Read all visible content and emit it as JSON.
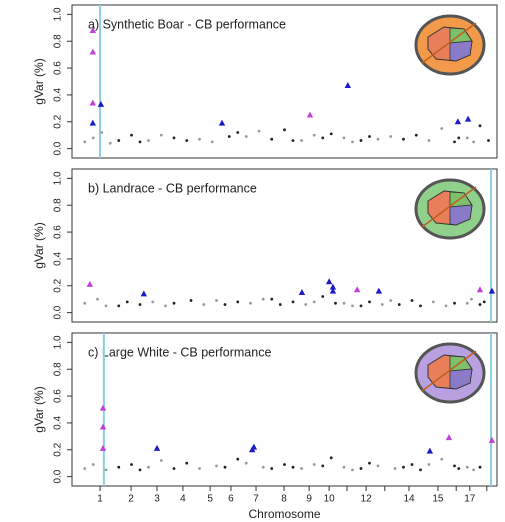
{
  "chart_data": [
    {
      "type": "scatter",
      "title": "a) Synthetic Boar - CB performance",
      "ylabel": "gVar (%)",
      "xlim": [
        0,
        100
      ],
      "ylim": [
        -0.07,
        1.07
      ],
      "yticks": [
        {
          "value": 0,
          "label": "0.0"
        },
        {
          "value": 0.2,
          "label": "0.2"
        },
        {
          "value": 0.4,
          "label": "0.4"
        },
        {
          "value": 0.6,
          "label": "0.6"
        },
        {
          "value": 0.8,
          "label": "0.8"
        },
        {
          "value": 1,
          "label": "1.0"
        }
      ],
      "vlines": [
        6.6
      ],
      "vline_color": "#8ccfe0",
      "icon_color": "#f39a4a",
      "series": [
        {
          "color": "#9a9a9a",
          "size": 1.4,
          "x": [
            3,
            5,
            7,
            9,
            18,
            21,
            30,
            33,
            41,
            44,
            54,
            57,
            64,
            66,
            72,
            75,
            84,
            87,
            93,
            94.5
          ],
          "values": [
            0.05,
            0.08,
            0.12,
            0.04,
            0.06,
            0.1,
            0.07,
            0.05,
            0.09,
            0.13,
            0.06,
            0.1,
            0.08,
            0.05,
            0.07,
            0.09,
            0.06,
            0.15,
            0.08,
            0.05
          ]
        },
        {
          "color": "#222222",
          "size": 1.4,
          "x": [
            11,
            14,
            16,
            24,
            27,
            37,
            39,
            47,
            50,
            52,
            59,
            61,
            68,
            70,
            78,
            81,
            90,
            91,
            96,
            98
          ],
          "values": [
            0.06,
            0.1,
            0.05,
            0.08,
            0.06,
            0.09,
            0.12,
            0.07,
            0.14,
            0.06,
            0.08,
            0.11,
            0.06,
            0.09,
            0.07,
            0.1,
            0.05,
            0.08,
            0.17,
            0.06
          ]
        },
        {
          "color": "#c23fd8",
          "marker": "triangle",
          "x": [
            4.9,
            4.9,
            4.9,
            56.0
          ],
          "values": [
            0.88,
            0.72,
            0.34,
            0.25
          ]
        },
        {
          "color": "#1c1cc8",
          "marker": "triangle",
          "x": [
            4.9,
            6.8,
            35.3,
            64.9,
            90.8,
            93.2
          ],
          "values": [
            0.19,
            0.33,
            0.19,
            0.47,
            0.2,
            0.22
          ]
        }
      ]
    },
    {
      "type": "scatter",
      "title": "b) Landrace - CB performance",
      "ylabel": "gVar (%)",
      "xlim": [
        0,
        100
      ],
      "ylim": [
        -0.07,
        1.07
      ],
      "yticks": [
        {
          "value": 0,
          "label": "0.0"
        },
        {
          "value": 0.2,
          "label": "0.2"
        },
        {
          "value": 0.4,
          "label": "0.4"
        },
        {
          "value": 0.6,
          "label": "0.6"
        },
        {
          "value": 0.8,
          "label": "0.8"
        },
        {
          "value": 1,
          "label": "1.0"
        }
      ],
      "vlines": [
        98.6
      ],
      "vline_color": "#8ccfe0",
      "icon_color": "#8fd18a",
      "series": [
        {
          "color": "#9a9a9a",
          "size": 1.4,
          "x": [
            3,
            6,
            8,
            19,
            22,
            31,
            34,
            42,
            45,
            55,
            57,
            64,
            66,
            73,
            75,
            85,
            88,
            93,
            94
          ],
          "values": [
            0.07,
            0.1,
            0.05,
            0.08,
            0.05,
            0.06,
            0.09,
            0.07,
            0.1,
            0.06,
            0.08,
            0.07,
            0.05,
            0.06,
            0.09,
            0.08,
            0.05,
            0.07,
            0.1
          ]
        },
        {
          "color": "#222222",
          "size": 1.4,
          "x": [
            11,
            13,
            16,
            24,
            28,
            36,
            39,
            47,
            49,
            52,
            59,
            62,
            68,
            70,
            77,
            80,
            82,
            90,
            96,
            97
          ],
          "values": [
            0.05,
            0.08,
            0.06,
            0.07,
            0.09,
            0.06,
            0.08,
            0.1,
            0.06,
            0.08,
            0.12,
            0.07,
            0.05,
            0.08,
            0.06,
            0.09,
            0.05,
            0.07,
            0.06,
            0.08
          ]
        },
        {
          "color": "#c23fd8",
          "marker": "triangle",
          "x": [
            4.2,
            67.1,
            96.0
          ],
          "values": [
            0.21,
            0.17,
            0.17
          ]
        },
        {
          "color": "#1c1cc8",
          "marker": "triangle",
          "x": [
            16.9,
            54.1,
            60.5,
            61.4,
            61.4,
            72.2,
            98.8
          ],
          "values": [
            0.14,
            0.15,
            0.23,
            0.19,
            0.16,
            0.16,
            0.16
          ]
        }
      ]
    },
    {
      "type": "scatter",
      "title": "c) Large White - CB performance",
      "ylabel": "gVar (%)",
      "xlabel": "Chromosome",
      "xlim": [
        0,
        100
      ],
      "ylim": [
        -0.07,
        1.07
      ],
      "yticks": [
        {
          "value": 0,
          "label": "0.0"
        },
        {
          "value": 0.2,
          "label": "0.2"
        },
        {
          "value": 0.4,
          "label": "0.4"
        },
        {
          "value": 0.6,
          "label": "0.6"
        },
        {
          "value": 0.8,
          "label": "0.8"
        },
        {
          "value": 1,
          "label": "1.0"
        }
      ],
      "xticks": [
        {
          "value": 6.6,
          "label": "1"
        },
        {
          "value": 13.9,
          "label": "2"
        },
        {
          "value": 20.0,
          "label": "3"
        },
        {
          "value": 26.1,
          "label": "4"
        },
        {
          "value": 32.5,
          "label": "5"
        },
        {
          "value": 37.4,
          "label": "6"
        },
        {
          "value": 43.3,
          "label": "7"
        },
        {
          "value": 49.9,
          "label": "8"
        },
        {
          "value": 55.8,
          "label": "9"
        },
        {
          "value": 60.5,
          "label": "10"
        },
        {
          "value": 64.7,
          "label": null
        },
        {
          "value": 69.2,
          "label": "12"
        },
        {
          "value": 73.6,
          "label": null
        },
        {
          "value": 79.3,
          "label": "14"
        },
        {
          "value": 86.1,
          "label": "15"
        },
        {
          "value": 90.4,
          "label": null
        },
        {
          "value": 93.6,
          "label": "17"
        },
        {
          "value": 97.6,
          "label": null
        }
      ],
      "vlines": [
        7.5,
        98.6
      ],
      "vline_color": "#8ccfe0",
      "icon_color": "#b9a0e0",
      "series": [
        {
          "color": "#9a9a9a",
          "size": 1.4,
          "x": [
            3,
            5,
            8,
            18,
            21,
            30,
            34,
            41,
            45,
            54,
            57,
            64,
            66,
            72,
            76,
            84,
            87,
            93,
            94.5
          ],
          "values": [
            0.06,
            0.09,
            0.05,
            0.07,
            0.12,
            0.06,
            0.08,
            0.1,
            0.07,
            0.06,
            0.09,
            0.07,
            0.05,
            0.08,
            0.06,
            0.09,
            0.13,
            0.07,
            0.05
          ]
        },
        {
          "color": "#222222",
          "size": 1.4,
          "x": [
            11,
            14,
            16,
            24,
            27,
            36,
            39,
            47,
            50,
            52,
            59,
            61,
            68,
            70,
            78,
            80,
            82,
            90,
            91,
            96
          ],
          "values": [
            0.07,
            0.09,
            0.05,
            0.06,
            0.1,
            0.07,
            0.13,
            0.06,
            0.09,
            0.07,
            0.08,
            0.14,
            0.06,
            0.1,
            0.07,
            0.09,
            0.05,
            0.08,
            0.06,
            0.07
          ]
        },
        {
          "color": "#c23fd8",
          "marker": "triangle",
          "x": [
            7.3,
            7.3,
            7.3,
            88.7,
            98.8
          ],
          "values": [
            0.51,
            0.37,
            0.21,
            0.29,
            0.27
          ]
        },
        {
          "color": "#1c1cc8",
          "marker": "triangle",
          "x": [
            20.0,
            42.4,
            42.8,
            84.2
          ],
          "values": [
            0.21,
            0.2,
            0.22,
            0.19
          ]
        }
      ]
    }
  ]
}
